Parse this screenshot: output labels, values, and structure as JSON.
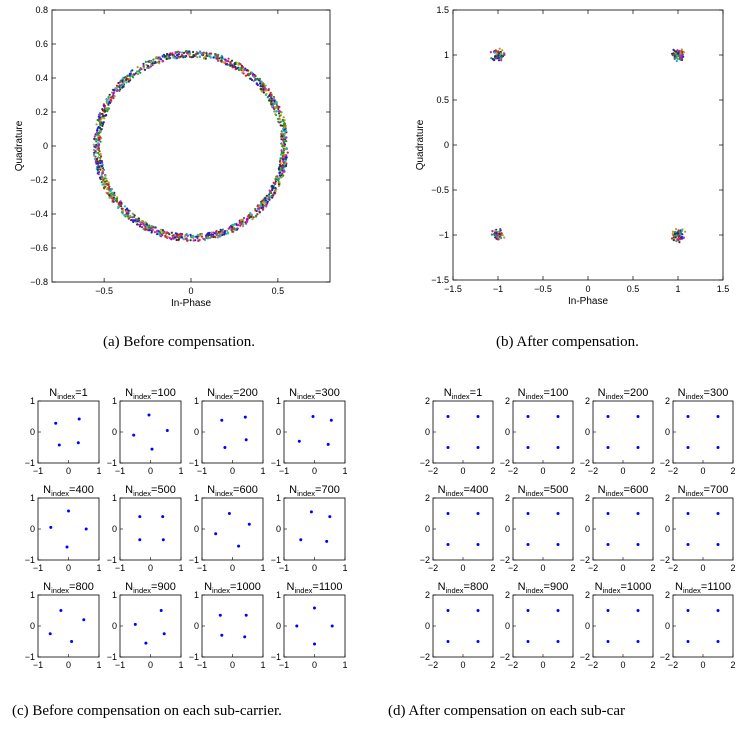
{
  "captions": {
    "a": "(a)  Before compensation.",
    "b": "(b)  After compensation.",
    "c": "(c)  Before compensation on each sub-carrier.",
    "d": "(d)  After compensation on each sub-car"
  },
  "colors": {
    "series": [
      "#1f1fd6",
      "#1a9e1a",
      "#d62020",
      "#20b8b8",
      "#c020c0",
      "#b0a020",
      "#333333"
    ],
    "subplot_points": "#0000ff"
  },
  "chart_data": [
    {
      "id": "a",
      "type": "scatter",
      "title": "",
      "xlabel": "In-Phase",
      "ylabel": "Quadrature",
      "xlim": [
        -0.8,
        0.8
      ],
      "ylim": [
        -0.8,
        0.8
      ],
      "xticks": [
        -0.5,
        0,
        0.5
      ],
      "yticks": [
        -0.8,
        -0.6,
        -0.4,
        -0.2,
        0,
        0.2,
        0.4,
        0.6,
        0.8
      ],
      "shape": "ring",
      "ring_center": [
        0,
        0
      ],
      "ring_radius": 0.54,
      "ring_thickness": 0.04
    },
    {
      "id": "b",
      "type": "scatter",
      "title": "",
      "xlabel": "In-Phase",
      "ylabel": "Quadrature",
      "xlim": [
        -1.5,
        1.5
      ],
      "ylim": [
        -1.5,
        1.5
      ],
      "xticks": [
        -1.5,
        -1,
        -0.5,
        0,
        0.5,
        1,
        1.5
      ],
      "yticks": [
        -1.5,
        -1,
        -0.5,
        0,
        0.5,
        1,
        1.5
      ],
      "shape": "clusters",
      "cluster_centers": [
        [
          -1,
          1
        ],
        [
          1,
          1
        ],
        [
          -1,
          -1
        ],
        [
          1,
          -1
        ]
      ],
      "cluster_spread": 0.05
    },
    {
      "id": "c",
      "type": "scatter",
      "xlim": [
        -1,
        1
      ],
      "ylim": [
        -1,
        1
      ],
      "xticks": [
        -1,
        0,
        1
      ],
      "yticks": [
        -1,
        0,
        1
      ],
      "subplots": [
        {
          "label": "N",
          "sub": "index",
          "value": "=1",
          "points": [
            [
              -0.42,
              0.28
            ],
            [
              0.35,
              0.42
            ],
            [
              0.32,
              -0.35
            ],
            [
              -0.3,
              -0.42
            ]
          ]
        },
        {
          "label": "N",
          "sub": "index",
          "value": "=100",
          "points": [
            [
              -0.05,
              0.55
            ],
            [
              0.55,
              0.05
            ],
            [
              0.05,
              -0.55
            ],
            [
              -0.55,
              -0.1
            ]
          ]
        },
        {
          "label": "N",
          "sub": "index",
          "value": "=200",
          "points": [
            [
              -0.35,
              0.38
            ],
            [
              0.42,
              0.48
            ],
            [
              0.45,
              -0.25
            ],
            [
              -0.25,
              -0.5
            ]
          ]
        },
        {
          "label": "N",
          "sub": "index",
          "value": "=300",
          "points": [
            [
              -0.05,
              0.5
            ],
            [
              0.55,
              0.38
            ],
            [
              0.45,
              -0.4
            ],
            [
              -0.5,
              -0.3
            ]
          ]
        },
        {
          "label": "N",
          "sub": "index",
          "value": "=400",
          "points": [
            [
              0.0,
              0.58
            ],
            [
              0.58,
              0.0
            ],
            [
              -0.05,
              -0.58
            ],
            [
              -0.58,
              0.05
            ]
          ]
        },
        {
          "label": "N",
          "sub": "index",
          "value": "=500",
          "points": [
            [
              -0.35,
              0.4
            ],
            [
              0.4,
              0.4
            ],
            [
              0.42,
              -0.35
            ],
            [
              -0.35,
              -0.35
            ]
          ]
        },
        {
          "label": "N",
          "sub": "index",
          "value": "=600",
          "points": [
            [
              -0.1,
              0.5
            ],
            [
              0.55,
              0.15
            ],
            [
              0.2,
              -0.55
            ],
            [
              -0.55,
              -0.15
            ]
          ]
        },
        {
          "label": "N",
          "sub": "index",
          "value": "=700",
          "points": [
            [
              -0.1,
              0.55
            ],
            [
              0.5,
              0.4
            ],
            [
              0.4,
              -0.4
            ],
            [
              -0.45,
              -0.35
            ]
          ]
        },
        {
          "label": "N",
          "sub": "index",
          "value": "=800",
          "points": [
            [
              -0.25,
              0.5
            ],
            [
              0.5,
              0.2
            ],
            [
              0.1,
              -0.5
            ],
            [
              -0.6,
              -0.25
            ]
          ]
        },
        {
          "label": "N",
          "sub": "index",
          "value": "=900",
          "points": [
            [
              0.35,
              0.5
            ],
            [
              0.45,
              -0.25
            ],
            [
              -0.15,
              -0.55
            ],
            [
              -0.5,
              0.05
            ]
          ]
        },
        {
          "label": "N",
          "sub": "index",
          "value": "=1000",
          "points": [
            [
              -0.4,
              0.35
            ],
            [
              0.45,
              0.35
            ],
            [
              0.4,
              -0.35
            ],
            [
              -0.35,
              -0.3
            ]
          ]
        },
        {
          "label": "N",
          "sub": "index",
          "value": "=1100",
          "points": [
            [
              0.0,
              0.58
            ],
            [
              0.58,
              0.0
            ],
            [
              0.0,
              -0.58
            ],
            [
              -0.58,
              0.0
            ]
          ]
        }
      ]
    },
    {
      "id": "d",
      "type": "scatter",
      "xlim": [
        -2,
        2
      ],
      "ylim": [
        -2,
        2
      ],
      "xticks": [
        -2,
        0,
        2
      ],
      "yticks": [
        -2,
        0,
        2
      ],
      "subplots": [
        {
          "label": "N",
          "sub": "index",
          "value": "=1",
          "points": [
            [
              -1,
              1
            ],
            [
              1,
              1
            ],
            [
              -1,
              -1
            ],
            [
              1,
              -1
            ]
          ]
        },
        {
          "label": "N",
          "sub": "index",
          "value": "=100",
          "points": [
            [
              -1,
              1
            ],
            [
              1,
              1
            ],
            [
              -1,
              -1
            ],
            [
              1,
              -1
            ]
          ]
        },
        {
          "label": "N",
          "sub": "index",
          "value": "=200",
          "points": [
            [
              -1,
              1
            ],
            [
              1,
              1
            ],
            [
              -1,
              -1
            ],
            [
              1,
              -1
            ]
          ]
        },
        {
          "label": "N",
          "sub": "index",
          "value": "=300",
          "points": [
            [
              -1,
              1
            ],
            [
              1,
              1
            ],
            [
              -1,
              -1
            ],
            [
              1,
              -1
            ]
          ]
        },
        {
          "label": "N",
          "sub": "index",
          "value": "=400",
          "points": [
            [
              -1,
              1
            ],
            [
              1,
              1
            ],
            [
              -1,
              -1
            ],
            [
              1,
              -1
            ]
          ]
        },
        {
          "label": "N",
          "sub": "index",
          "value": "=500",
          "points": [
            [
              -1,
              1
            ],
            [
              1,
              1
            ],
            [
              -1,
              -1
            ],
            [
              1,
              -1
            ]
          ]
        },
        {
          "label": "N",
          "sub": "index",
          "value": "=600",
          "points": [
            [
              -1,
              1
            ],
            [
              1,
              1
            ],
            [
              -1,
              -1
            ],
            [
              1,
              -1
            ]
          ]
        },
        {
          "label": "N",
          "sub": "index",
          "value": "=700",
          "points": [
            [
              -1,
              1
            ],
            [
              1,
              1
            ],
            [
              -1,
              -1
            ],
            [
              1,
              -1
            ]
          ]
        },
        {
          "label": "N",
          "sub": "index",
          "value": "=800",
          "points": [
            [
              -1,
              1
            ],
            [
              1,
              1
            ],
            [
              -1,
              -1
            ],
            [
              1,
              -1
            ]
          ]
        },
        {
          "label": "N",
          "sub": "index",
          "value": "=900",
          "points": [
            [
              -1,
              1
            ],
            [
              1,
              1
            ],
            [
              -1,
              -1
            ],
            [
              1,
              -1
            ]
          ]
        },
        {
          "label": "N",
          "sub": "index",
          "value": "=1000",
          "points": [
            [
              -1,
              1
            ],
            [
              1,
              1
            ],
            [
              -1,
              -1
            ],
            [
              1,
              -1
            ]
          ]
        },
        {
          "label": "N",
          "sub": "index",
          "value": "=1100",
          "points": [
            [
              -1,
              1
            ],
            [
              1,
              1
            ],
            [
              -1,
              -1
            ],
            [
              1,
              -1
            ]
          ]
        }
      ]
    }
  ]
}
